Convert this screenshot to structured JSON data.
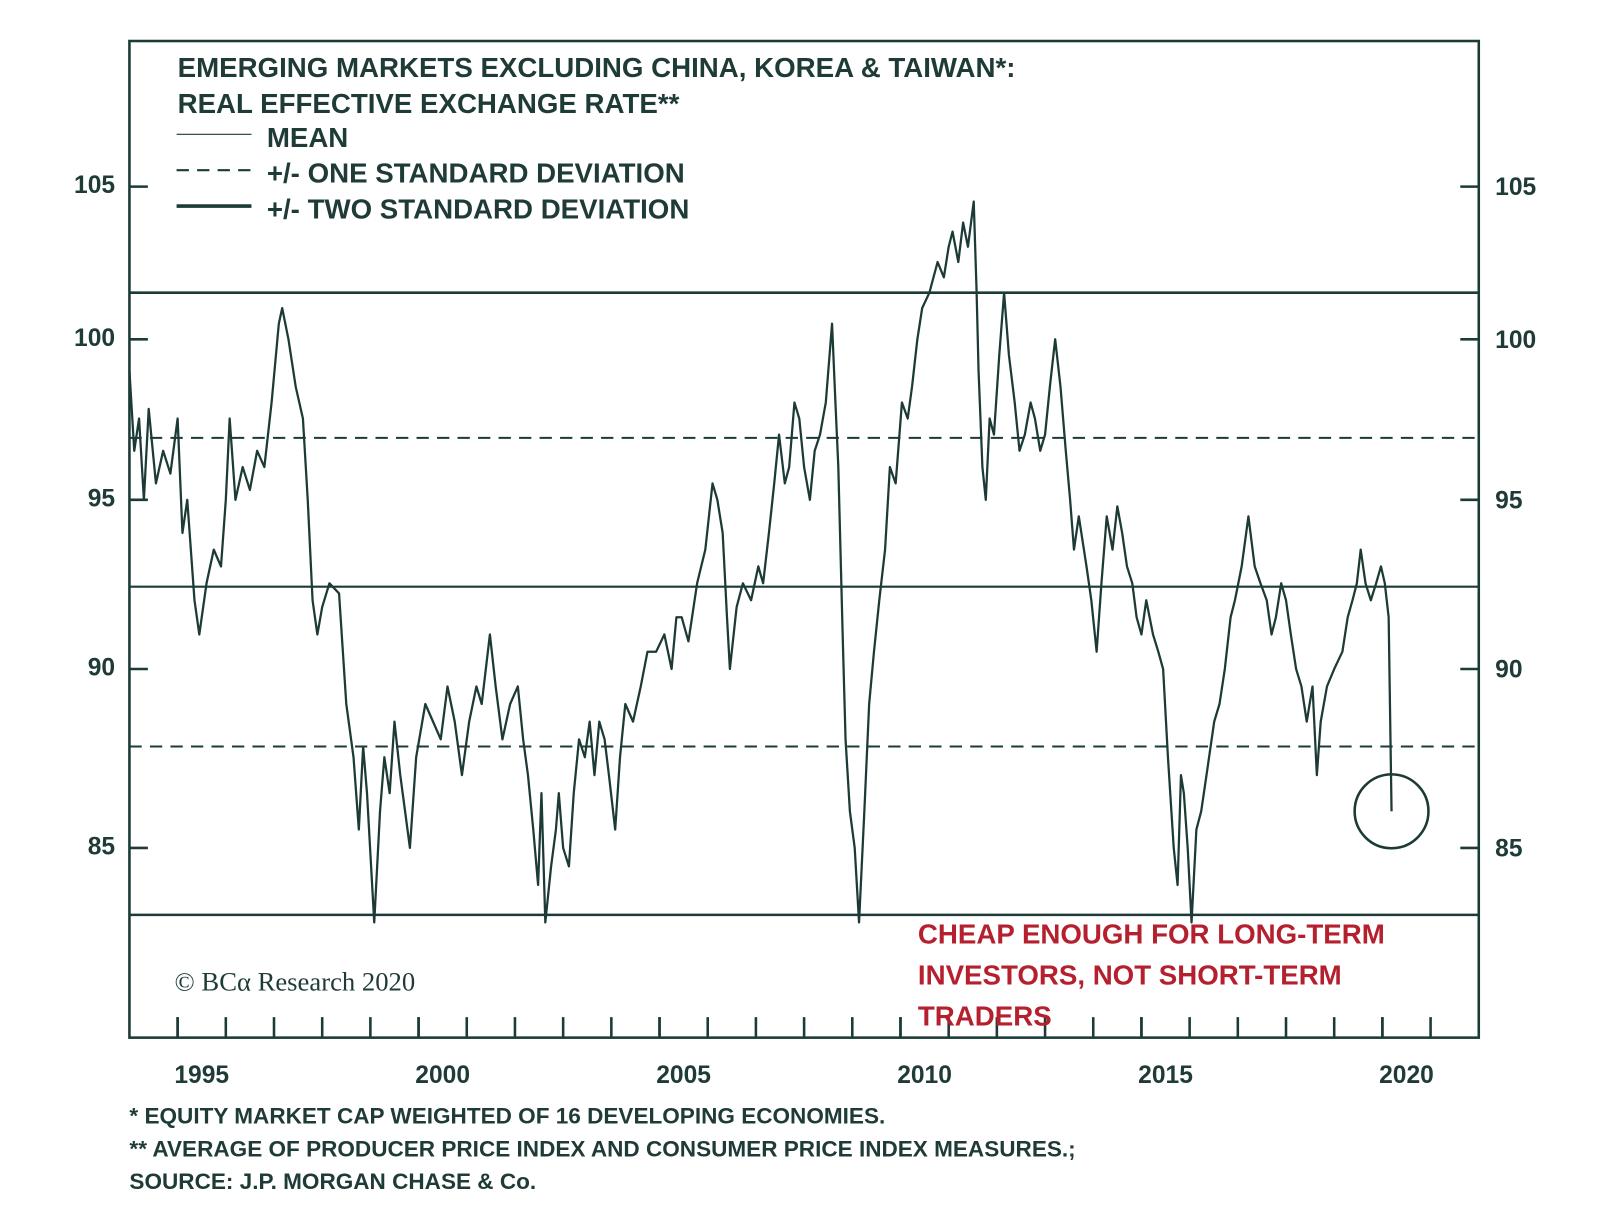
{
  "chart_data": {
    "type": "line",
    "title": [
      "EMERGING MARKETS EXCLUDING CHINA, KOREA & TAIWAN*:",
      "REAL EFFECTIVE EXCHANGE RATE**"
    ],
    "x": [
      1994.0,
      1994.1,
      1994.2,
      1994.3,
      1994.4,
      1994.55,
      1994.7,
      1994.85,
      1995.0,
      1995.1,
      1995.2,
      1995.35,
      1995.45,
      1995.6,
      1995.75,
      1995.9,
      1996.0,
      1996.08,
      1996.2,
      1996.35,
      1996.5,
      1996.65,
      1996.8,
      1996.95,
      1997.1,
      1997.17,
      1997.3,
      1997.45,
      1997.6,
      1997.7,
      1997.8,
      1997.9,
      1998.0,
      1998.15,
      1998.35,
      1998.5,
      1998.65,
      1998.76,
      1998.85,
      1998.93,
      1999.08,
      1999.2,
      1999.29,
      1999.4,
      1999.5,
      1999.62,
      1999.72,
      1999.82,
      1999.95,
      2000.14,
      2000.3,
      2000.46,
      2000.6,
      2000.75,
      2000.9,
      2001.05,
      2001.2,
      2001.31,
      2001.48,
      2001.6,
      2001.74,
      2001.9,
      2002.06,
      2002.17,
      2002.27,
      2002.38,
      2002.48,
      2002.55,
      2002.63,
      2002.75,
      2002.85,
      2002.91,
      2003.0,
      2003.12,
      2003.22,
      2003.33,
      2003.45,
      2003.55,
      2003.65,
      2003.75,
      2003.86,
      2003.95,
      2004.08,
      2004.18,
      2004.29,
      2004.45,
      2004.61,
      2004.75,
      2004.93,
      2005.1,
      2005.25,
      2005.35,
      2005.46,
      2005.6,
      2005.78,
      2005.95,
      2006.1,
      2006.2,
      2006.31,
      2006.4,
      2006.46,
      2006.6,
      2006.73,
      2006.9,
      2007.05,
      2007.15,
      2007.27,
      2007.38,
      2007.48,
      2007.6,
      2007.69,
      2007.8,
      2007.9,
      2008.0,
      2008.12,
      2008.22,
      2008.33,
      2008.45,
      2008.58,
      2008.65,
      2008.71,
      2008.8,
      2008.86,
      2008.95,
      2009.05,
      2009.14,
      2009.25,
      2009.35,
      2009.45,
      2009.56,
      2009.68,
      2009.78,
      2009.9,
      2010.03,
      2010.15,
      2010.24,
      2010.35,
      2010.45,
      2010.6,
      2010.77,
      2010.9,
      2011.0,
      2011.08,
      2011.2,
      2011.3,
      2011.4,
      2011.52,
      2011.58,
      2011.62,
      2011.7,
      2011.77,
      2011.85,
      2011.94,
      2012.05,
      2012.15,
      2012.25,
      2012.37,
      2012.47,
      2012.58,
      2012.7,
      2012.79,
      2012.9,
      2013.0,
      2013.1,
      2013.21,
      2013.32,
      2013.43,
      2013.52,
      2013.6,
      2013.7,
      2013.86,
      2013.96,
      2014.07,
      2014.17,
      2014.28,
      2014.4,
      2014.5,
      2014.6,
      2014.7,
      2014.81,
      2014.9,
      2015.0,
      2015.1,
      2015.24,
      2015.35,
      2015.45,
      2015.55,
      2015.67,
      2015.75,
      2015.82,
      2015.88,
      2015.96,
      2016.04,
      2016.14,
      2016.24,
      2016.35,
      2016.51,
      2016.62,
      2016.73,
      2016.85,
      2016.94,
      2017.08,
      2017.22,
      2017.35,
      2017.47,
      2017.6,
      2017.7,
      2017.79,
      2017.9,
      2018.0,
      2018.1,
      2018.21,
      2018.32,
      2018.43,
      2018.55,
      2018.64,
      2018.72,
      2018.85,
      2019.0,
      2019.17,
      2019.28,
      2019.38,
      2019.47,
      2019.55,
      2019.65,
      2019.76,
      2019.87,
      2019.97,
      2020.05,
      2020.13,
      2020.19
    ],
    "values": [
      99,
      96.5,
      97.5,
      95,
      97.8,
      95.5,
      96.5,
      95.8,
      97.5,
      94,
      95,
      92,
      91,
      92.5,
      93.5,
      93,
      95,
      97.5,
      95,
      96,
      95.3,
      96.5,
      96,
      98,
      100.5,
      101,
      100,
      98.5,
      97.5,
      95,
      92,
      91,
      91.8,
      92.5,
      92.2,
      89,
      87.5,
      85.5,
      87.8,
      86.5,
      83,
      86,
      87.5,
      86.5,
      88.5,
      87,
      86,
      85,
      87.5,
      89,
      88.5,
      88,
      89.5,
      88.5,
      87,
      88.5,
      89.5,
      89,
      91,
      89.5,
      88,
      89,
      89.5,
      88,
      87,
      85.5,
      84,
      86.5,
      83,
      84.5,
      85.5,
      86.5,
      85,
      84.5,
      86.5,
      88,
      87.5,
      88.5,
      87,
      88.5,
      88,
      87,
      85.5,
      87.5,
      89,
      88.5,
      89.5,
      90.5,
      90.5,
      91,
      90,
      91.5,
      91.5,
      90.8,
      92.5,
      93.5,
      95.5,
      95,
      94,
      91.5,
      90,
      91.8,
      92.5,
      92,
      93,
      92.5,
      94,
      95.5,
      97,
      95.5,
      96,
      98,
      97.5,
      96,
      95,
      96.5,
      97,
      98,
      100.5,
      98,
      96,
      91,
      88,
      86,
      85,
      83,
      86,
      89,
      90.5,
      92,
      93.5,
      96,
      95.5,
      98,
      97.5,
      98.5,
      100,
      101,
      101.5,
      102.5,
      102,
      103,
      103.5,
      102.5,
      103.8,
      103,
      104.5,
      101.5,
      99,
      96,
      95,
      97.5,
      97,
      99.5,
      101.5,
      99.5,
      98,
      96.5,
      97,
      98,
      97.5,
      96.5,
      97,
      98.5,
      100,
      98.5,
      96.5,
      95,
      93.5,
      94.5,
      93,
      92,
      90.5,
      92.5,
      94.5,
      93.5,
      94.8,
      94,
      93,
      92.5,
      91.5,
      91,
      92,
      91,
      90.5,
      90,
      87.5,
      85,
      84,
      87,
      86.5,
      85,
      83,
      85.5,
      86,
      87,
      88.5,
      89,
      90,
      91.5,
      92,
      93,
      94.5,
      93,
      92.5,
      92,
      91,
      91.5,
      92.5,
      92,
      91,
      90,
      89.5,
      88.5,
      89.5,
      87,
      88.5,
      89.5,
      90,
      90.5,
      91.5,
      92,
      92.5,
      93.5,
      92.5,
      92,
      92.5,
      93,
      92.5,
      91.5,
      86
    ],
    "color": "#1c3a36",
    "xlim": [
      1994,
      2022
    ],
    "xticks": [
      1995,
      2000,
      2005,
      2010,
      2015,
      2020
    ],
    "xminorticks": [
      1995,
      1996,
      1997,
      1998,
      1999,
      2000,
      2001,
      2002,
      2003,
      2004,
      2005,
      2006,
      2007,
      2008,
      2009,
      2010,
      2011,
      2012,
      2013,
      2014,
      2015,
      2016,
      2017,
      2018,
      2019,
      2020,
      2021
    ],
    "ylim": [
      80,
      110
    ],
    "yticks": [
      85,
      90,
      95,
      100,
      105
    ],
    "log_scale": true,
    "reference_lines": [
      {
        "name": "MEAN",
        "values": [
          92.4
        ],
        "style": "solid"
      },
      {
        "name": "+/- ONE STANDARD DEVIATION",
        "values": [
          96.9,
          87.8
        ],
        "style": "dashed"
      },
      {
        "name": "+/- TWO STANDARD DEVIATION",
        "values": [
          101.5,
          83.2
        ],
        "style": "thick"
      }
    ],
    "annotation": [
      "CHEAP ENOUGH FOR LONG-TERM",
      "INVESTORS, NOT SHORT-TERM",
      "TRADERS"
    ],
    "copyright": "© BCα Research 2020",
    "footnotes": [
      "*  EQUITY MARKET CAP WEIGHTED OF 16 DEVELOPING ECONOMIES.",
      "** AVERAGE OF PRODUCER PRICE INDEX AND CONSUMER PRICE INDEX MEASURES.;",
      "SOURCE: J.P. MORGAN CHASE & Co."
    ]
  }
}
